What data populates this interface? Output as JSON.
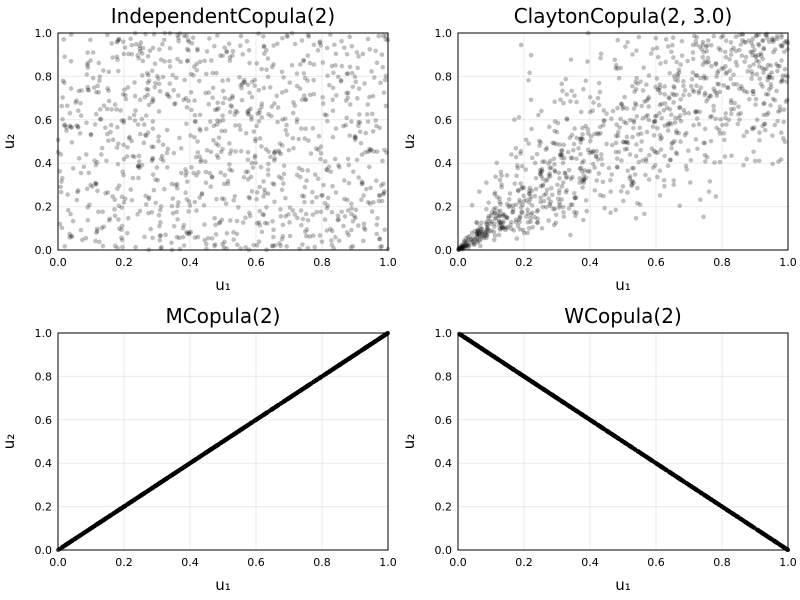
{
  "chart_data": [
    {
      "type": "scatter",
      "title": "IndependentCopula(2)",
      "xlabel": "u₁",
      "ylabel": "u₂",
      "xlim": [
        0,
        1
      ],
      "ylim": [
        0,
        1
      ],
      "xticks": [
        "0.0",
        "0.2",
        "0.4",
        "0.6",
        "0.8",
        "1.0"
      ],
      "yticks": [
        "0.0",
        "0.2",
        "0.4",
        "0.6",
        "0.8",
        "1.0"
      ],
      "grid": true,
      "marker_color": "#000000",
      "marker_opacity": 0.25,
      "n_points": 1000,
      "dependence": "independent"
    },
    {
      "type": "scatter",
      "title": "ClaytonCopula(2, 3.0)",
      "xlabel": "u₁",
      "ylabel": "u₂",
      "xlim": [
        0,
        1
      ],
      "ylim": [
        0,
        1
      ],
      "xticks": [
        "0.0",
        "0.2",
        "0.4",
        "0.6",
        "0.8",
        "1.0"
      ],
      "yticks": [
        "0.0",
        "0.2",
        "0.4",
        "0.6",
        "0.8",
        "1.0"
      ],
      "grid": true,
      "marker_color": "#000000",
      "marker_opacity": 0.25,
      "n_points": 1000,
      "dependence": "clayton",
      "theta": 3.0
    },
    {
      "type": "scatter",
      "title": "MCopula(2)",
      "xlabel": "u₁",
      "ylabel": "u₂",
      "xlim": [
        0,
        1
      ],
      "ylim": [
        0,
        1
      ],
      "xticks": [
        "0.0",
        "0.2",
        "0.4",
        "0.6",
        "0.8",
        "1.0"
      ],
      "yticks": [
        "0.0",
        "0.2",
        "0.4",
        "0.6",
        "0.8",
        "1.0"
      ],
      "grid": true,
      "marker_color": "#000000",
      "marker_opacity": 0.25,
      "n_points": 1000,
      "dependence": "comonotone",
      "line": [
        [
          0,
          0
        ],
        [
          1,
          1
        ]
      ]
    },
    {
      "type": "scatter",
      "title": "WCopula(2)",
      "xlabel": "u₁",
      "ylabel": "u₂",
      "xlim": [
        0,
        1
      ],
      "ylim": [
        0,
        1
      ],
      "xticks": [
        "0.0",
        "0.2",
        "0.4",
        "0.6",
        "0.8",
        "1.0"
      ],
      "yticks": [
        "0.0",
        "0.2",
        "0.4",
        "0.6",
        "0.8",
        "1.0"
      ],
      "grid": true,
      "marker_color": "#000000",
      "marker_opacity": 0.25,
      "n_points": 1000,
      "dependence": "countermonotone",
      "line": [
        [
          0,
          1
        ],
        [
          1,
          0
        ]
      ]
    }
  ]
}
